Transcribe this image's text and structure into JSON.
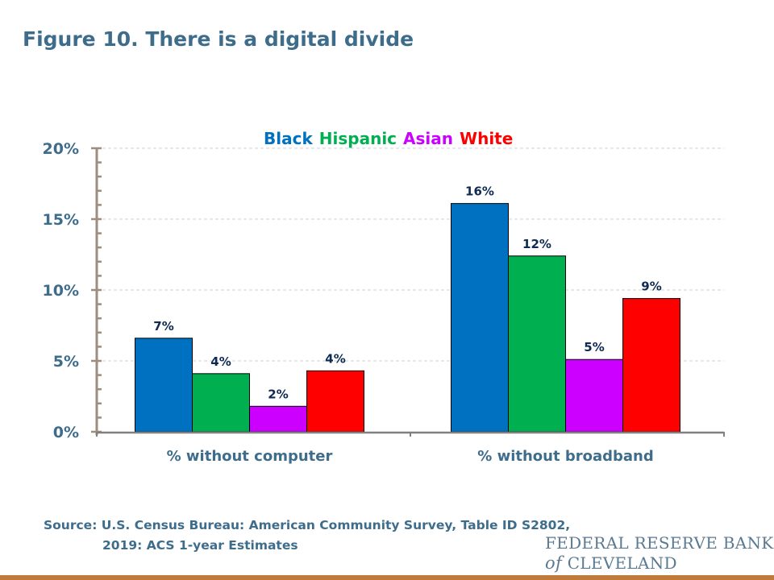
{
  "title": "Figure 10. There is a digital divide",
  "chart_data": {
    "type": "bar",
    "title": "",
    "xlabel": "",
    "ylabel": "",
    "categories": [
      "% without computer",
      "% without broadband"
    ],
    "series": [
      {
        "name": "Black",
        "color": "#0070c0",
        "values": [
          6.6,
          16.1
        ],
        "labels": [
          "7%",
          "16%"
        ]
      },
      {
        "name": "Hispanic",
        "color": "#00b050",
        "values": [
          4.1,
          12.4
        ],
        "labels": [
          "4%",
          "12%"
        ]
      },
      {
        "name": "Asian",
        "color": "#cc00ff",
        "values": [
          1.8,
          5.1
        ],
        "labels": [
          "2%",
          "5%"
        ]
      },
      {
        "name": "White",
        "color": "#ff0000",
        "values": [
          4.3,
          9.4
        ],
        "labels": [
          "4%",
          "9%"
        ]
      }
    ],
    "ylim": [
      0,
      20
    ],
    "yticks": [
      "0%",
      "5%",
      "10%",
      "15%",
      "20%"
    ],
    "grid": true,
    "legend": "top-center"
  },
  "source": {
    "line1": "Source: U.S. Census Bureau: American Community Survey, Table ID S2802,",
    "line2": "2019: ACS 1-year Estimates"
  },
  "logo": {
    "line1": "FEDERAL RESERVE BANK",
    "of": "of",
    "line2": "CLEVELAND"
  }
}
